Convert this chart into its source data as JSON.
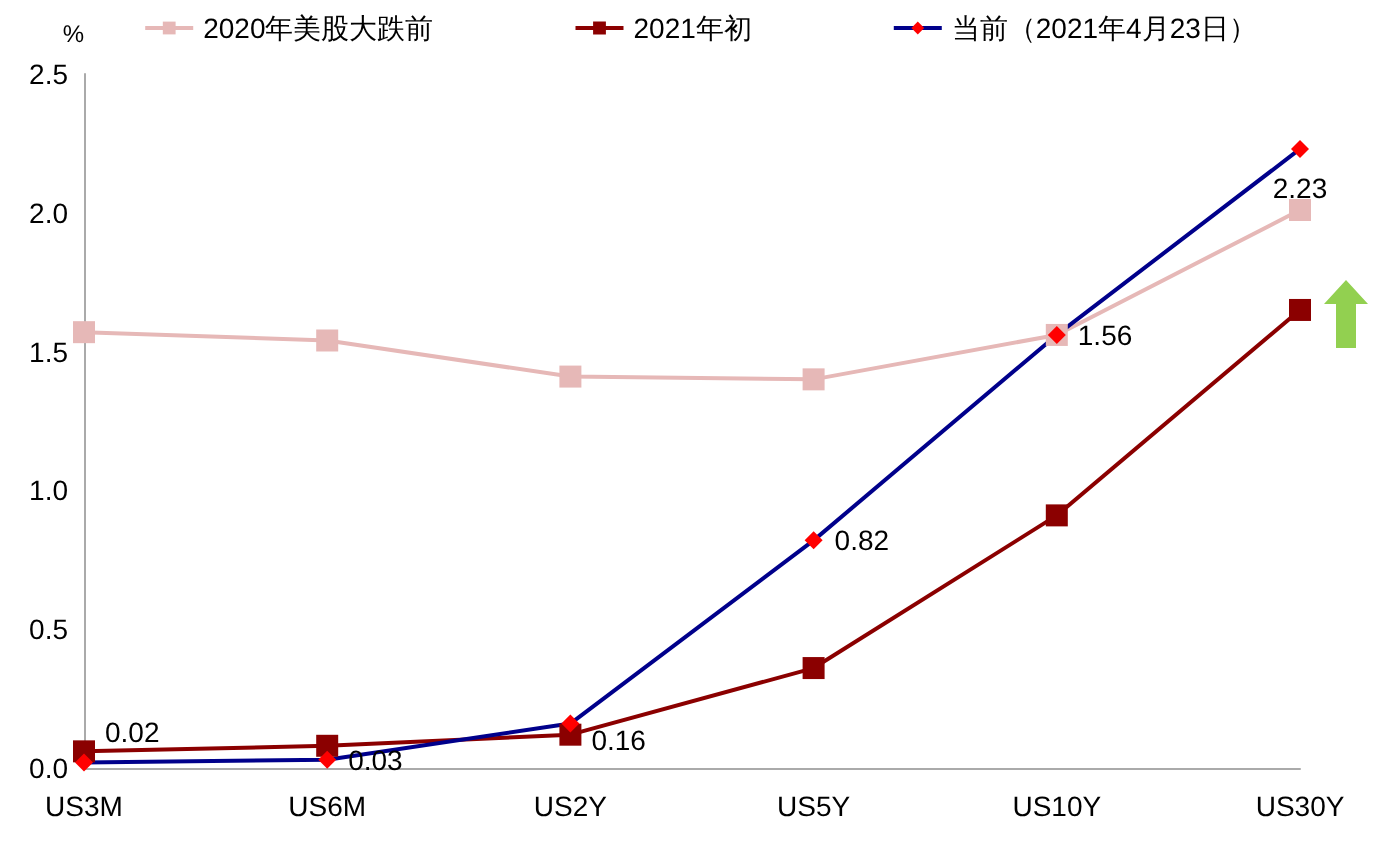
{
  "chart_data": {
    "type": "line",
    "ylabel": "%",
    "categories": [
      "US3M",
      "US6M",
      "US2Y",
      "US5Y",
      "US10Y",
      "US30Y"
    ],
    "series": [
      {
        "name": "2020年美股大跌前",
        "color": "#e6b8b7",
        "marker": "square",
        "values": [
          1.57,
          1.54,
          1.41,
          1.4,
          1.56,
          2.01
        ]
      },
      {
        "name": "2021年初",
        "color": "#8b0000",
        "marker": "square",
        "values": [
          0.06,
          0.08,
          0.12,
          0.36,
          0.91,
          1.65
        ]
      },
      {
        "name": "当前（2021年4月23日）",
        "color": "#00008b",
        "colors": [
          "#ff0000",
          "#ff0000",
          "#ff0000",
          "#ff0000",
          "#ff0000",
          "#ff0000"
        ],
        "marker": "diamond",
        "values": [
          0.02,
          0.03,
          0.16,
          0.82,
          1.56,
          2.23
        ],
        "value_labels": [
          "0.02",
          "0.03",
          "0.16",
          "0.82",
          "1.56",
          "2.23"
        ]
      }
    ],
    "ylim": [
      0,
      2.5
    ],
    "yticks": [
      {
        "value": 0,
        "label": "0.0"
      },
      {
        "value": 0.5,
        "label": "0.5"
      },
      {
        "value": 1,
        "label": "1.0"
      },
      {
        "value": 1.5,
        "label": "1.5"
      },
      {
        "value": 2,
        "label": "2.0"
      },
      {
        "value": 2.5,
        "label": "2.5"
      }
    ],
    "grid": false,
    "legend": "top"
  }
}
